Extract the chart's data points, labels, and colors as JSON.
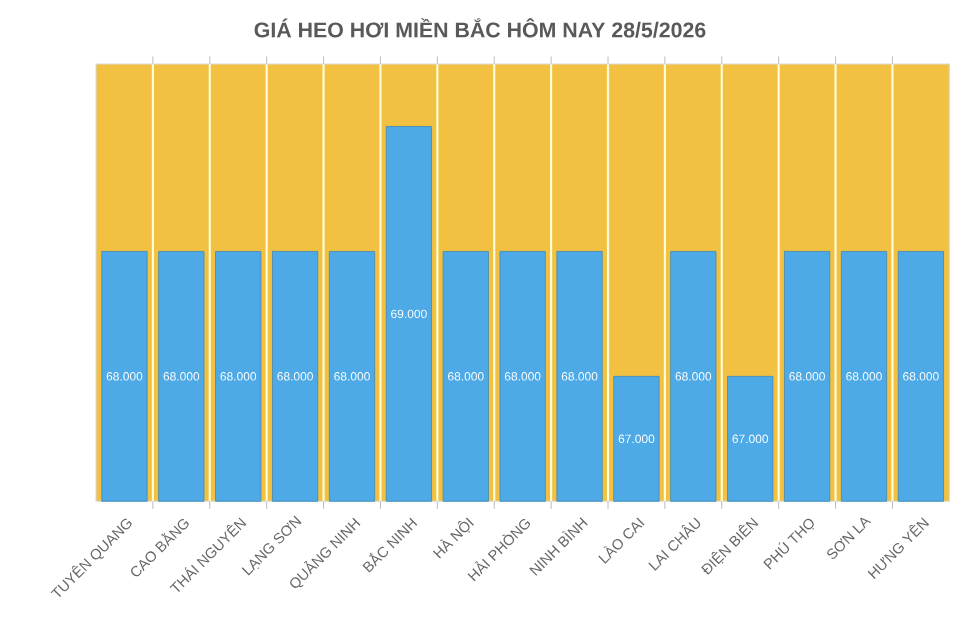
{
  "chart_data": {
    "type": "bar",
    "title": "GIÁ HEO HƠI MIỀN BẮC HÔM NAY 28/5/2026",
    "categories": [
      "TUYÊN QUANG",
      "CAO BẰNG",
      "THÁI NGUYÊN",
      "LẠNG SƠN",
      "QUẢNG NINH",
      "BẮC NINH",
      "HÀ NỘI",
      "HẢI PHÒNG",
      "NINH BÌNH",
      "LÀO CAI",
      "LAI CHÂU",
      "ĐIỆN BIÊN",
      "PHÚ THỌ",
      "SƠN LA",
      "HƯNG YÊN"
    ],
    "values": [
      68000,
      68000,
      68000,
      68000,
      68000,
      69000,
      68000,
      68000,
      68000,
      67000,
      68000,
      67000,
      68000,
      68000,
      68000
    ],
    "value_labels": [
      "68.000",
      "68.000",
      "68.000",
      "68.000",
      "68.000",
      "69.000",
      "68.000",
      "68.000",
      "68.000",
      "67.000",
      "68.000",
      "67.000",
      "68.000",
      "68.000",
      "68.000"
    ],
    "color": "#4eaae6",
    "ylim": [
      66000,
      69500
    ],
    "grid": "x"
  }
}
